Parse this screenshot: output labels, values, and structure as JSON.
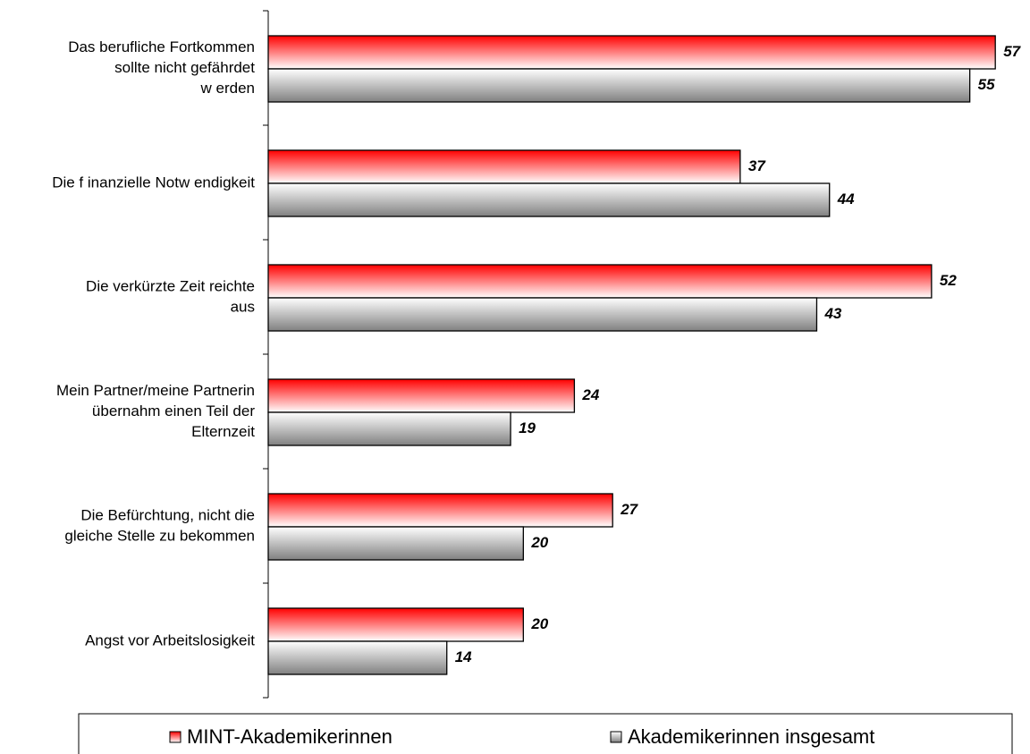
{
  "chart_data": {
    "type": "bar",
    "orientation": "horizontal",
    "categories": [
      "Das berufliche Fortkommen\nsollte nicht gefährdet\nw erden",
      "Die f inanzielle Notw endigkeit",
      "Die verkürzte Zeit reichte\naus",
      "Mein Partner/meine Partnerin\nübernahm einen Teil der\nElternzeit",
      "Die Befürchtung, nicht die\ngleiche Stelle zu bekommen",
      "Angst vor Arbeitslosigkeit"
    ],
    "series": [
      {
        "name": "MINT-Akademikerinnen",
        "color": "#ff0000",
        "values": [
          57,
          37,
          52,
          24,
          27,
          20
        ]
      },
      {
        "name": "Akademikerinnen insgesamt",
        "color": "#808080",
        "values": [
          55,
          44,
          43,
          19,
          20,
          14
        ]
      }
    ],
    "xlim": [
      0,
      60
    ],
    "legend": "bottom"
  }
}
